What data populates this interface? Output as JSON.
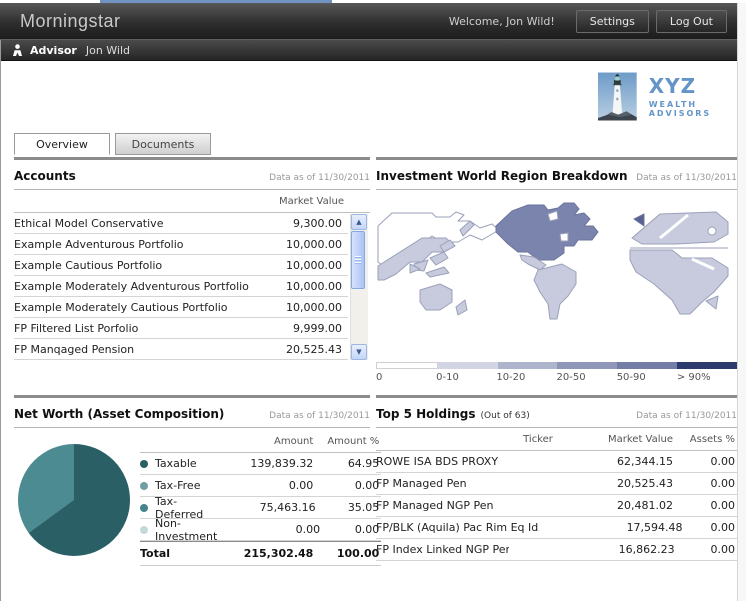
{
  "icons": {
    "scroll_up": "▲",
    "scroll_down": "▼"
  },
  "header": {
    "brand": "Morningstar",
    "welcome": "Welcome, Jon Wild!",
    "settings_label": "Settings",
    "logout_label": "Log Out"
  },
  "subheader": {
    "role_label": "Advisor",
    "user_name": "Jon Wild"
  },
  "logo": {
    "line1": "XYZ",
    "line2": "WEALTH ADVISORS"
  },
  "tabs": [
    {
      "label": "Overview",
      "active": true
    },
    {
      "label": "Documents",
      "active": false
    }
  ],
  "accounts": {
    "title": "Accounts",
    "as_of": "Data as of 11/30/2011",
    "value_header": "Market Value",
    "rows": [
      {
        "name": "Ethical Model Conservative",
        "value": "9,300.00"
      },
      {
        "name": "Example Adventurous Portfolio",
        "value": "10,000.00"
      },
      {
        "name": "Example Cautious Portfolio",
        "value": "10,000.00"
      },
      {
        "name": "Example Moderately Adventurous Portfolio",
        "value": "10,000.00"
      },
      {
        "name": "Example Moderately Cautious Portfolio",
        "value": "10,000.00"
      },
      {
        "name": "FP Filtered List Porfolio",
        "value": "9,999.00"
      },
      {
        "name": "FP Manqaged Pension",
        "value": "20,525.43"
      }
    ]
  },
  "world_region": {
    "title": "Investment World Region Breakdown",
    "as_of": "Data as of 11/30/2011",
    "colors": {
      "white": "#ffffff",
      "light": "#c7cbdd",
      "dark": "#7b84ad",
      "uk": "#5a6390"
    },
    "legend": [
      {
        "label": "0",
        "color": "#ffffff"
      },
      {
        "label": "0-10",
        "color": "#d2d5e3"
      },
      {
        "label": "10-20",
        "color": "#aeb4cc"
      },
      {
        "label": "20-50",
        "color": "#9096b8"
      },
      {
        "label": "50-90",
        "color": "#737da6"
      },
      {
        "label": "> 90%",
        "color": "#2d3a6d"
      }
    ],
    "regions": [
      {
        "name": "Russia / North Asia",
        "bucket": "0"
      },
      {
        "name": "Asia",
        "bucket": "0-10"
      },
      {
        "name": "Australia / Oceania",
        "bucket": "0-10"
      },
      {
        "name": "North America",
        "bucket": "50-90"
      },
      {
        "name": "Central America",
        "bucket": "0-10"
      },
      {
        "name": "South America",
        "bucket": "0-10"
      },
      {
        "name": "United Kingdom",
        "bucket": "50-90"
      },
      {
        "name": "Europe",
        "bucket": "0-10"
      },
      {
        "name": "Africa",
        "bucket": "0-10"
      }
    ]
  },
  "net_worth": {
    "title": "Net Worth (Asset Composition)",
    "as_of": "Data as of 11/30/2011",
    "headers": {
      "amount": "Amount",
      "amount_pct": "Amount %"
    },
    "rows": [
      {
        "label": "Taxable",
        "amount": "139,839.32",
        "pct": "64.95",
        "color": "#2a5f66"
      },
      {
        "label": "Tax-Free",
        "amount": "0.00",
        "pct": "0.00",
        "color": "#6f9fa5"
      },
      {
        "label": "Tax-Deferred",
        "amount": "75,463.16",
        "pct": "35.05",
        "color": "#45858c"
      },
      {
        "label": "Non-Investment",
        "amount": "0.00",
        "pct": "0.00",
        "color": "#c6d9da"
      }
    ],
    "total": {
      "label": "Total",
      "amount": "215,302.48",
      "pct": "100.00"
    },
    "pie": {
      "type": "pie",
      "slices": [
        {
          "label": "Taxable",
          "value": 64.95,
          "color": "#2a5f66"
        },
        {
          "label": "Tax-Deferred",
          "value": 35.05,
          "color": "#4c8b91"
        }
      ]
    }
  },
  "top_holdings": {
    "title": "Top 5 Holdings",
    "subtitle": "(Out of 63)",
    "as_of": "Data as of 11/30/2011",
    "headers": {
      "ticker": "Ticker",
      "market_value": "Market Value",
      "assets_pct": "Assets %"
    },
    "rows": [
      {
        "name": "ROWE ISA BDS PROXY",
        "ticker": "",
        "market_value": "62,344.15",
        "assets_pct": "0.00"
      },
      {
        "name": "FP Managed Pen",
        "ticker": "",
        "market_value": "20,525.43",
        "assets_pct": "0.00"
      },
      {
        "name": "FP Managed NGP Pen",
        "ticker": "",
        "market_value": "20,481.02",
        "assets_pct": "0.00"
      },
      {
        "name": "FP/BLK (Aquila) Pac Rim Eq Idx Pen",
        "ticker": "",
        "market_value": "17,594.48",
        "assets_pct": "0.00"
      },
      {
        "name": "FP Index Linked NGP Pen",
        "ticker": "",
        "market_value": "16,862.23",
        "assets_pct": "0.00"
      }
    ]
  }
}
